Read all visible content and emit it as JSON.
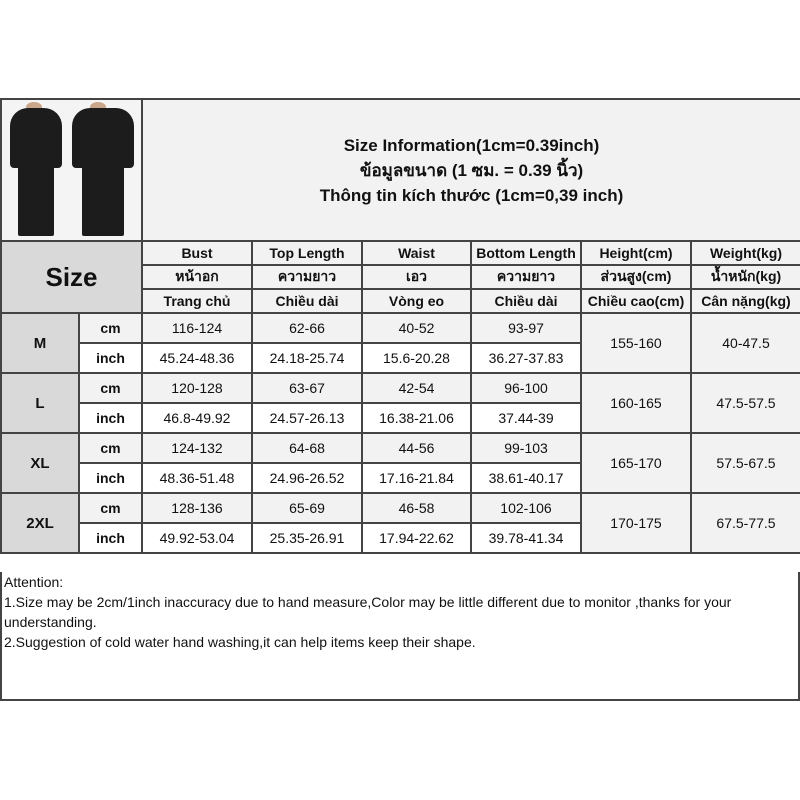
{
  "title": {
    "line1": "Size Information(1cm=0.39inch)",
    "line2": "ข้อมูลขนาด (1 ซม. = 0.39 นิ้ว)",
    "line3": "Thông tin kích thước (1cm=0,39 inch)"
  },
  "size_label": "Size",
  "columns": [
    {
      "en": "Bust",
      "th": "หน้าอก",
      "vi": "Trang chủ"
    },
    {
      "en": "Top Length",
      "th": "ความยาว",
      "vi": "Chiều dài"
    },
    {
      "en": "Waist",
      "th": "เอว",
      "vi": "Vòng eo"
    },
    {
      "en": "Bottom Length",
      "th": "ความยาว",
      "vi": "Chiều dài"
    },
    {
      "en": "Height(cm)",
      "th": "ส่วนสูง(cm)",
      "vi": "Chiều cao(cm)"
    },
    {
      "en": "Weight(kg)",
      "th": "น้ำหนัก(kg)",
      "vi": "Cân nặng(kg)"
    }
  ],
  "units": {
    "cm": "cm",
    "inch": "inch"
  },
  "sizes": [
    {
      "size": "M",
      "cm": [
        "116-124",
        "62-66",
        "40-52",
        "93-97"
      ],
      "inch": [
        "45.24-48.36",
        "24.18-25.74",
        "15.6-20.28",
        "36.27-37.83"
      ],
      "height": "155-160",
      "weight": "40-47.5"
    },
    {
      "size": "L",
      "cm": [
        "120-128",
        "63-67",
        "42-54",
        "96-100"
      ],
      "inch": [
        "46.8-49.92",
        "24.57-26.13",
        "16.38-21.06",
        "37.44-39"
      ],
      "height": "160-165",
      "weight": "47.5-57.5"
    },
    {
      "size": "XL",
      "cm": [
        "124-132",
        "64-68",
        "44-56",
        "99-103"
      ],
      "inch": [
        "48.36-51.48",
        "24.96-26.52",
        "17.16-21.84",
        "38.61-40.17"
      ],
      "height": "165-170",
      "weight": "57.5-67.5"
    },
    {
      "size": "2XL",
      "cm": [
        "128-136",
        "65-69",
        "46-58",
        "102-106"
      ],
      "inch": [
        "49.92-53.04",
        "25.35-26.91",
        "17.94-22.62",
        "39.78-41.34"
      ],
      "height": "170-175",
      "weight": "67.5-77.5"
    }
  ],
  "attention": {
    "heading": "Attention:",
    "items": [
      "1.Size may be 2cm/1inch inaccuracy due to hand measure,Color may be little different due to monitor ,thanks for your understanding.",
      "2.Suggestion of cold water hand washing,it can help items keep their shape."
    ]
  }
}
